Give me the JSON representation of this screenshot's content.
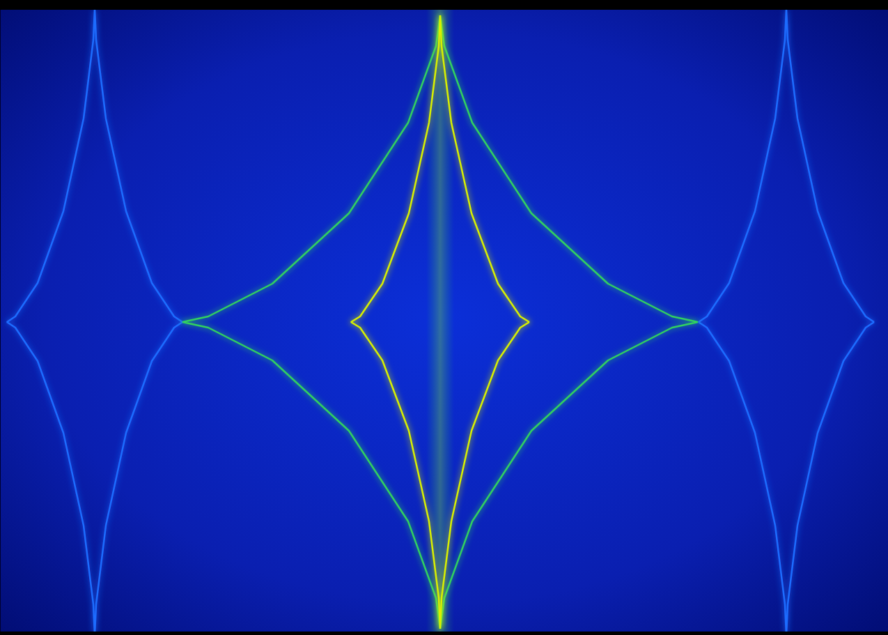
{
  "chart_data": {
    "type": "line",
    "tick_labels": false,
    "grid": false,
    "xlim": [
      0,
      1275
    ],
    "ylim": [
      0,
      911
    ],
    "series": [
      {
        "color": "#1e6cff",
        "x": [
          262,
          250,
          218,
          181,
          152,
          138,
          136,
          134,
          120,
          91,
          54,
          22,
          10,
          22,
          54,
          91,
          120,
          134,
          136,
          138,
          152,
          181,
          218,
          250,
          262
        ],
        "values": [
          449,
          457,
          505,
          608,
          741,
          854,
          898,
          854,
          741,
          608,
          505,
          457,
          449,
          441,
          393,
          290,
          157,
          44,
          0,
          44,
          157,
          290,
          393,
          441,
          449
        ]
      },
      {
        "color": "#1e6cff",
        "x": [
          1255,
          1243,
          1211,
          1174,
          1145,
          1131,
          1129,
          1127,
          1113,
          1084,
          1047,
          1015,
          1003,
          1015,
          1047,
          1084,
          1113,
          1127,
          1129,
          1131,
          1145,
          1174,
          1211,
          1243,
          1255
        ],
        "values": [
          449,
          457,
          505,
          608,
          741,
          854,
          898,
          854,
          741,
          608,
          505,
          457,
          449,
          441,
          393,
          290,
          157,
          44,
          0,
          44,
          157,
          290,
          393,
          441,
          449
        ]
      },
      {
        "color": "#30d060",
        "x": [
          1002,
          965,
          873,
          763,
          678,
          638,
          632,
          626,
          586,
          501,
          391,
          299,
          262,
          299,
          391,
          501,
          586,
          626,
          632,
          638,
          678,
          763,
          873,
          965,
          1002
        ],
        "values": [
          449,
          457,
          504,
          605,
          735,
          845,
          889,
          845,
          735,
          605,
          504,
          457,
          449,
          441,
          394,
          293,
          163,
          53,
          9,
          53,
          163,
          293,
          394,
          441,
          449
        ]
      },
      {
        "color": "#d8f000",
        "x": [
          760,
          747,
          715,
          677,
          648,
          634,
          632,
          630,
          616,
          587,
          549,
          517,
          504,
          517,
          549,
          587,
          616,
          630,
          632,
          634,
          648,
          677,
          715,
          747,
          760
        ],
        "values": [
          449,
          457,
          504,
          605,
          735,
          845,
          889,
          845,
          735,
          605,
          504,
          457,
          449,
          441,
          394,
          293,
          163,
          53,
          9,
          53,
          163,
          293,
          394,
          441,
          449
        ]
      },
      {
        "color": "#ff2000",
        "x": [
          632,
          632
        ],
        "values": [
          893,
          6
        ]
      }
    ]
  }
}
